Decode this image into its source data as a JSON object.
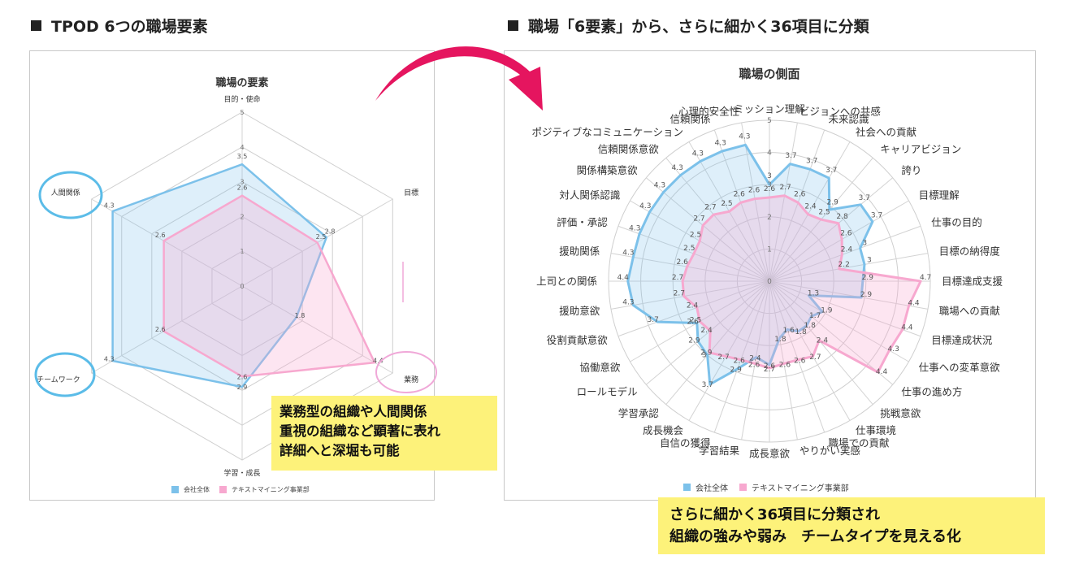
{
  "headings": {
    "left": "TPOD 6つの職場要素",
    "right": "職場「6要素」から、さらに細かく36項目に分類"
  },
  "callouts": {
    "left": [
      "業務型の組織や人間関係",
      "重視の組織など顕著に表れ",
      "詳細へと深堀も可能"
    ],
    "right": [
      "さらに細かく36項目に分類され",
      "組織の強みや弱み　チームタイプを見える化"
    ]
  },
  "colors": {
    "company": "#7cc1ea",
    "company_fill": "rgba(124,193,234,0.25)",
    "textmining": "#f7a8cf",
    "textmining_fill": "rgba(247,168,207,0.3)",
    "callout_bg": "#fdf27a",
    "arrow": "#e5155f",
    "highlight_circle_blue": "#5bbce8",
    "highlight_circle_pink": "#f0a8d8"
  },
  "chart_data": [
    {
      "type": "radar",
      "title": "職場の要素",
      "categories": [
        "目的・使命",
        "目標",
        "業務",
        "学習・成長",
        "チームワーク",
        "人間関係"
      ],
      "rlim": [
        0,
        5
      ],
      "ticks": [
        "0",
        "1",
        "2",
        "3",
        "4",
        "5"
      ],
      "series": [
        {
          "name": "会社全体",
          "values": [
            3.5,
            2.8,
            1.8,
            2.9,
            4.3,
            4.3
          ]
        },
        {
          "name": "テキストマイニング事業部",
          "values": [
            2.6,
            2.5,
            4.4,
            2.6,
            2.6,
            2.6
          ]
        }
      ],
      "legend": "bottom",
      "highlighted_categories": [
        "人間関係",
        "チームワーク",
        "業務"
      ]
    },
    {
      "type": "radar",
      "title": "職場の側面",
      "categories": [
        "ミッション理解",
        "ビジョンへの共感",
        "未来認識",
        "社会への貢献",
        "キャリアビジョン",
        "誇り",
        "目標理解",
        "仕事の目的",
        "目標の納得度",
        "目標達成支援",
        "職場への貢献",
        "目標達成状況",
        "仕事への変革意欲",
        "仕事の進め方",
        "挑戦意欲",
        "仕事環境",
        "職場での貢献",
        "やりがい実感",
        "成長意欲",
        "学習結果",
        "自信の獲得",
        "成長機会",
        "学習承認",
        "ロールモデル",
        "協働意欲",
        "役割貢献意欲",
        "援助意欲",
        "上司との関係",
        "援助関係",
        "評価・承認",
        "対人関係認識",
        "関係構築意欲",
        "信頼関係意欲",
        "ポジティブなコミュニケーション",
        "信頼関係",
        "心理的安全性"
      ],
      "rlim": [
        0,
        5
      ],
      "ticks": [
        "0",
        "1",
        "2",
        "3",
        "4",
        "5"
      ],
      "series": [
        {
          "name": "会社全体",
          "values": [
            3,
            3.7,
            3.7,
            3.7,
            2.9,
            3.7,
            3.7,
            3,
            3,
            2.9,
            2.9,
            1.3,
            1.9,
            1.7,
            1.8,
            1.8,
            1.6,
            1.8,
            2.6,
            2.4,
            2.9,
            3.7,
            3,
            2.9,
            2.6,
            3.7,
            4.3,
            4.4,
            4.3,
            4.3,
            4.3,
            4.3,
            4.3,
            4.3,
            4.3,
            4.3
          ]
        },
        {
          "name": "テキストマイニング事業部",
          "values": [
            2.6,
            2.7,
            2.6,
            2.4,
            2.5,
            2.8,
            2.6,
            2.4,
            2.2,
            4.7,
            4.4,
            4.4,
            4.3,
            4.4,
            2.4,
            2.7,
            2.6,
            2.6,
            2.7,
            2.6,
            2.6,
            2.7,
            2.9,
            2.4,
            2.5,
            2.4,
            2.7,
            2.7,
            2.6,
            2.5,
            2.5,
            2.7,
            2.7,
            2.5,
            2.6,
            2.6
          ]
        }
      ],
      "legend": "bottom"
    }
  ]
}
